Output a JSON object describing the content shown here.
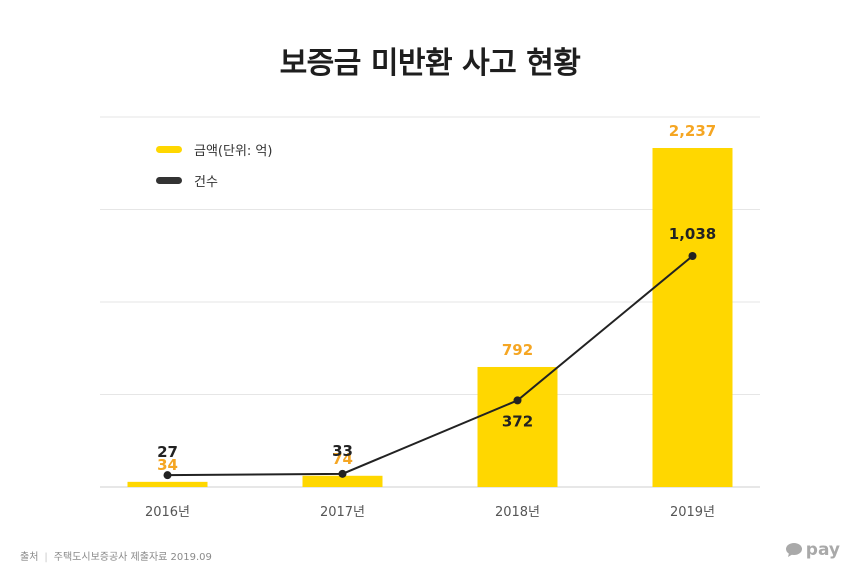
{
  "title": "보증금 미반환 사고 현황",
  "legend": {
    "amount_label": "금액(단위: 억)",
    "count_label": "건수"
  },
  "colors": {
    "bar": "#FFD700",
    "bar_label": "#F5A623",
    "line": "#222222",
    "grid": "#e6e6e6",
    "axis_text": "#555555"
  },
  "chart_data": {
    "type": "bar",
    "categories": [
      "2016년",
      "2017년",
      "2018년",
      "2019년"
    ],
    "series": [
      {
        "name": "금액(단위: 억)",
        "type": "bar",
        "values": [
          34,
          74,
          792,
          2237
        ],
        "labels": [
          "34",
          "74",
          "792",
          "2,237"
        ]
      },
      {
        "name": "건수",
        "type": "line",
        "values": [
          27,
          33,
          372,
          1038
        ],
        "labels": [
          "27",
          "33",
          "372",
          "1,038"
        ]
      }
    ],
    "grid": true,
    "legend_position": "top-left"
  },
  "footer": {
    "source_label": "출처",
    "source_text": "주택도시보증공사 제출자료 2019.09",
    "logo_text": "pay"
  }
}
